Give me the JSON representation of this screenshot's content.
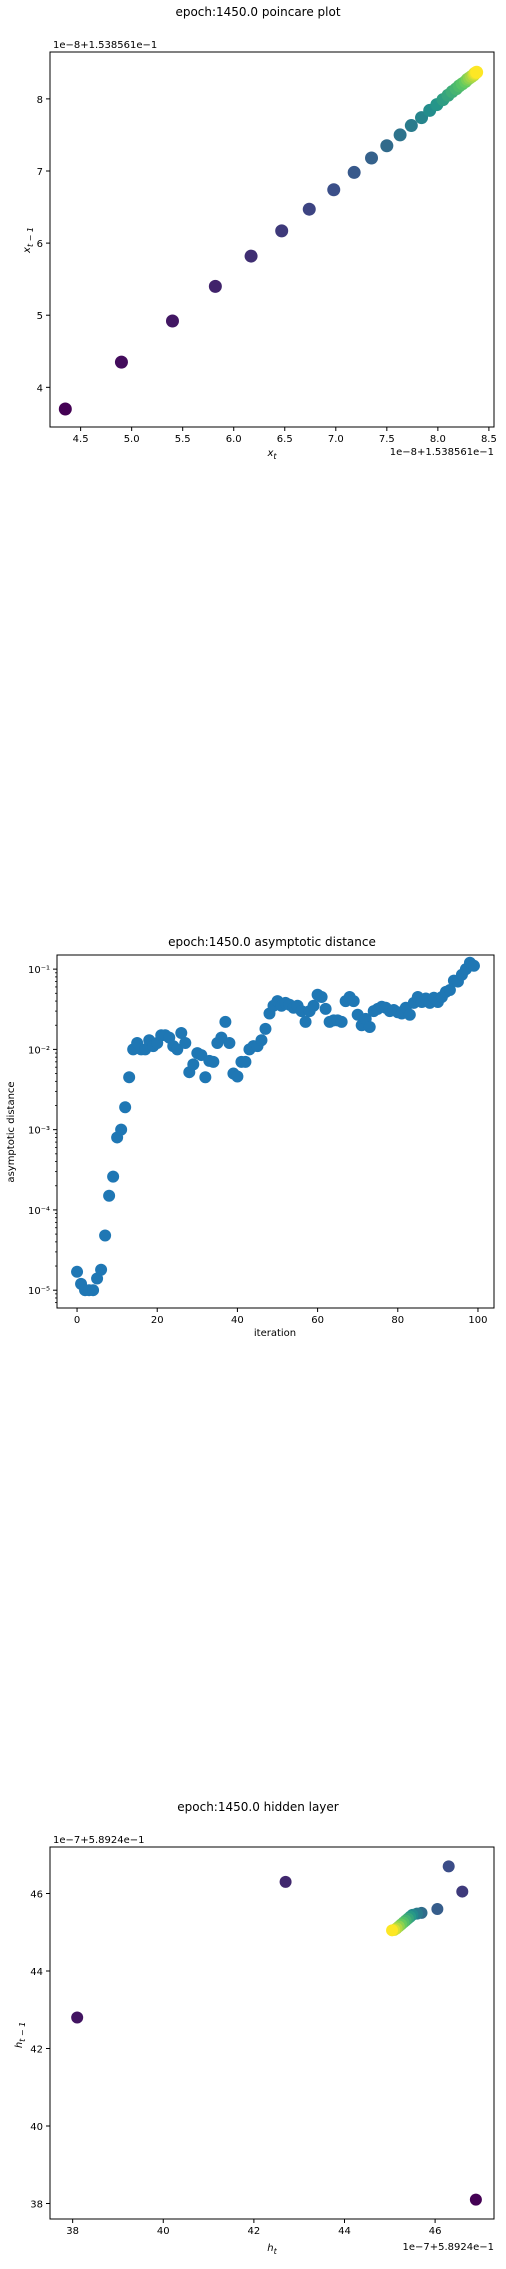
{
  "chart_data": [
    {
      "type": "scatter",
      "title": "epoch:1450.0 poincare plot",
      "xlabel": "x_t",
      "ylabel": "x_{t-1}",
      "x_offset_text": "1e−8+1.538561e−1",
      "y_offset_text": "1e−8+1.538561e−1",
      "xlim": [
        4.2,
        8.55
      ],
      "ylim": [
        3.45,
        8.65
      ],
      "xticks": [
        4.5,
        5.0,
        5.5,
        6.0,
        6.5,
        7.0,
        7.5,
        8.0,
        8.5
      ],
      "xtick_labels": [
        "4.5",
        "5.0",
        "5.5",
        "6.0",
        "6.5",
        "7.0",
        "7.5",
        "8.0",
        "8.5"
      ],
      "yticks": [
        4,
        5,
        6,
        7,
        8
      ],
      "ytick_labels": [
        "4",
        "5",
        "6",
        "7",
        "8"
      ],
      "colormap": "viridis",
      "colormap_colors": [
        "#440154",
        "#3b528b",
        "#21918c",
        "#5ec962",
        "#fde725"
      ],
      "color_by": "index",
      "points": [
        [
          4.35,
          3.7
        ],
        [
          4.9,
          4.35
        ],
        [
          5.4,
          4.92
        ],
        [
          5.82,
          5.4
        ],
        [
          6.17,
          5.82
        ],
        [
          6.47,
          6.17
        ],
        [
          6.74,
          6.47
        ],
        [
          6.98,
          6.74
        ],
        [
          7.18,
          6.98
        ],
        [
          7.35,
          7.18
        ],
        [
          7.5,
          7.35
        ],
        [
          7.63,
          7.5
        ],
        [
          7.74,
          7.63
        ],
        [
          7.84,
          7.74
        ],
        [
          7.92,
          7.84
        ],
        [
          7.99,
          7.92
        ],
        [
          8.05,
          7.99
        ],
        [
          8.1,
          8.05
        ],
        [
          8.14,
          8.1
        ],
        [
          8.18,
          8.14
        ],
        [
          8.21,
          8.18
        ],
        [
          8.24,
          8.21
        ],
        [
          8.27,
          8.24
        ],
        [
          8.29,
          8.27
        ],
        [
          8.31,
          8.29
        ],
        [
          8.33,
          8.31
        ],
        [
          8.35,
          8.33
        ],
        [
          8.36,
          8.35
        ],
        [
          8.37,
          8.36
        ],
        [
          8.38,
          8.37
        ]
      ],
      "grid": false
    },
    {
      "type": "scatter",
      "title": "epoch:1450.0 asymptotic distance",
      "xlabel": "iteration",
      "ylabel": "asymptotic distance",
      "yscale": "log",
      "xlim": [
        -5,
        104
      ],
      "ylim": [
        6e-06,
        0.15
      ],
      "xticks": [
        0,
        20,
        40,
        60,
        80,
        100
      ],
      "xtick_labels": [
        "0",
        "20",
        "40",
        "60",
        "80",
        "100"
      ],
      "yticks": [
        1e-05,
        0.0001,
        0.001,
        0.01,
        0.1
      ],
      "ytick_labels": [
        "10⁻⁵",
        "10⁻⁴",
        "10⁻³",
        "10⁻²",
        "10⁻¹"
      ],
      "point_color": "#1f77b4",
      "x": [
        0,
        1,
        2,
        3,
        4,
        5,
        6,
        7,
        8,
        9,
        10,
        11,
        12,
        13,
        14,
        15,
        16,
        17,
        18,
        19,
        20,
        21,
        22,
        23,
        24,
        25,
        26,
        27,
        28,
        29,
        30,
        31,
        32,
        33,
        34,
        35,
        36,
        37,
        38,
        39,
        40,
        41,
        42,
        43,
        44,
        45,
        46,
        47,
        48,
        49,
        50,
        51,
        52,
        53,
        54,
        55,
        56,
        57,
        58,
        59,
        60,
        61,
        62,
        63,
        64,
        65,
        66,
        67,
        68,
        69,
        70,
        71,
        72,
        73,
        74,
        75,
        76,
        77,
        78,
        79,
        80,
        81,
        82,
        83,
        84,
        85,
        86,
        87,
        88,
        89,
        90,
        91,
        92,
        93,
        94,
        95,
        96,
        97,
        98,
        99
      ],
      "y": [
        1.7e-05,
        1.2e-05,
        1e-05,
        1e-05,
        1e-05,
        1.4e-05,
        1.8e-05,
        4.8e-05,
        0.00015,
        0.00026,
        0.0008,
        0.001,
        0.0019,
        0.0045,
        0.01,
        0.012,
        0.01,
        0.01,
        0.013,
        0.011,
        0.012,
        0.015,
        0.015,
        0.014,
        0.011,
        0.01,
        0.016,
        0.012,
        0.0052,
        0.0065,
        0.009,
        0.0085,
        0.0045,
        0.0072,
        0.007,
        0.012,
        0.014,
        0.022,
        0.012,
        0.005,
        0.0046,
        0.007,
        0.007,
        0.01,
        0.011,
        0.011,
        0.013,
        0.018,
        0.028,
        0.035,
        0.04,
        0.035,
        0.038,
        0.036,
        0.033,
        0.035,
        0.03,
        0.022,
        0.03,
        0.035,
        0.048,
        0.045,
        0.032,
        0.022,
        0.023,
        0.023,
        0.022,
        0.04,
        0.045,
        0.04,
        0.027,
        0.02,
        0.024,
        0.019,
        0.03,
        0.032,
        0.034,
        0.033,
        0.03,
        0.031,
        0.029,
        0.028,
        0.033,
        0.027,
        0.038,
        0.045,
        0.039,
        0.043,
        0.038,
        0.044,
        0.039,
        0.045,
        0.052,
        0.055,
        0.072,
        0.07,
        0.085,
        0.1,
        0.12,
        0.11
      ],
      "grid": false
    },
    {
      "type": "scatter",
      "title": "epoch:1450.0 hidden layer",
      "xlabel": "h_t",
      "ylabel": "h_{t-1}",
      "x_offset_text": "1e−7+5.8924e−1",
      "y_offset_text": "1e−7+5.8924e−1",
      "xlim": [
        37.5,
        47.3
      ],
      "ylim": [
        37.6,
        47.2
      ],
      "xticks": [
        38,
        40,
        42,
        44,
        46
      ],
      "xtick_labels": [
        "38",
        "40",
        "42",
        "44",
        "46"
      ],
      "yticks": [
        38,
        40,
        42,
        44,
        46
      ],
      "ytick_labels": [
        "38",
        "40",
        "42",
        "44",
        "46"
      ],
      "colormap": "viridis",
      "colormap_colors": [
        "#440154",
        "#3b528b",
        "#21918c",
        "#5ec962",
        "#fde725"
      ],
      "color_by": "index",
      "points": [
        [
          46.9,
          38.1
        ],
        [
          38.1,
          42.8
        ],
        [
          42.7,
          46.3
        ],
        [
          46.6,
          46.05
        ],
        [
          46.3,
          46.7
        ],
        [
          46.05,
          45.6
        ],
        [
          45.7,
          45.5
        ],
        [
          45.6,
          45.48
        ],
        [
          45.5,
          45.45
        ],
        [
          45.45,
          45.4
        ],
        [
          45.4,
          45.35
        ],
        [
          45.35,
          45.3
        ],
        [
          45.3,
          45.25
        ],
        [
          45.25,
          45.2
        ],
        [
          45.2,
          45.15
        ],
        [
          45.15,
          45.1
        ],
        [
          45.1,
          45.06
        ],
        [
          45.05,
          45.05
        ]
      ],
      "grid": false
    }
  ]
}
